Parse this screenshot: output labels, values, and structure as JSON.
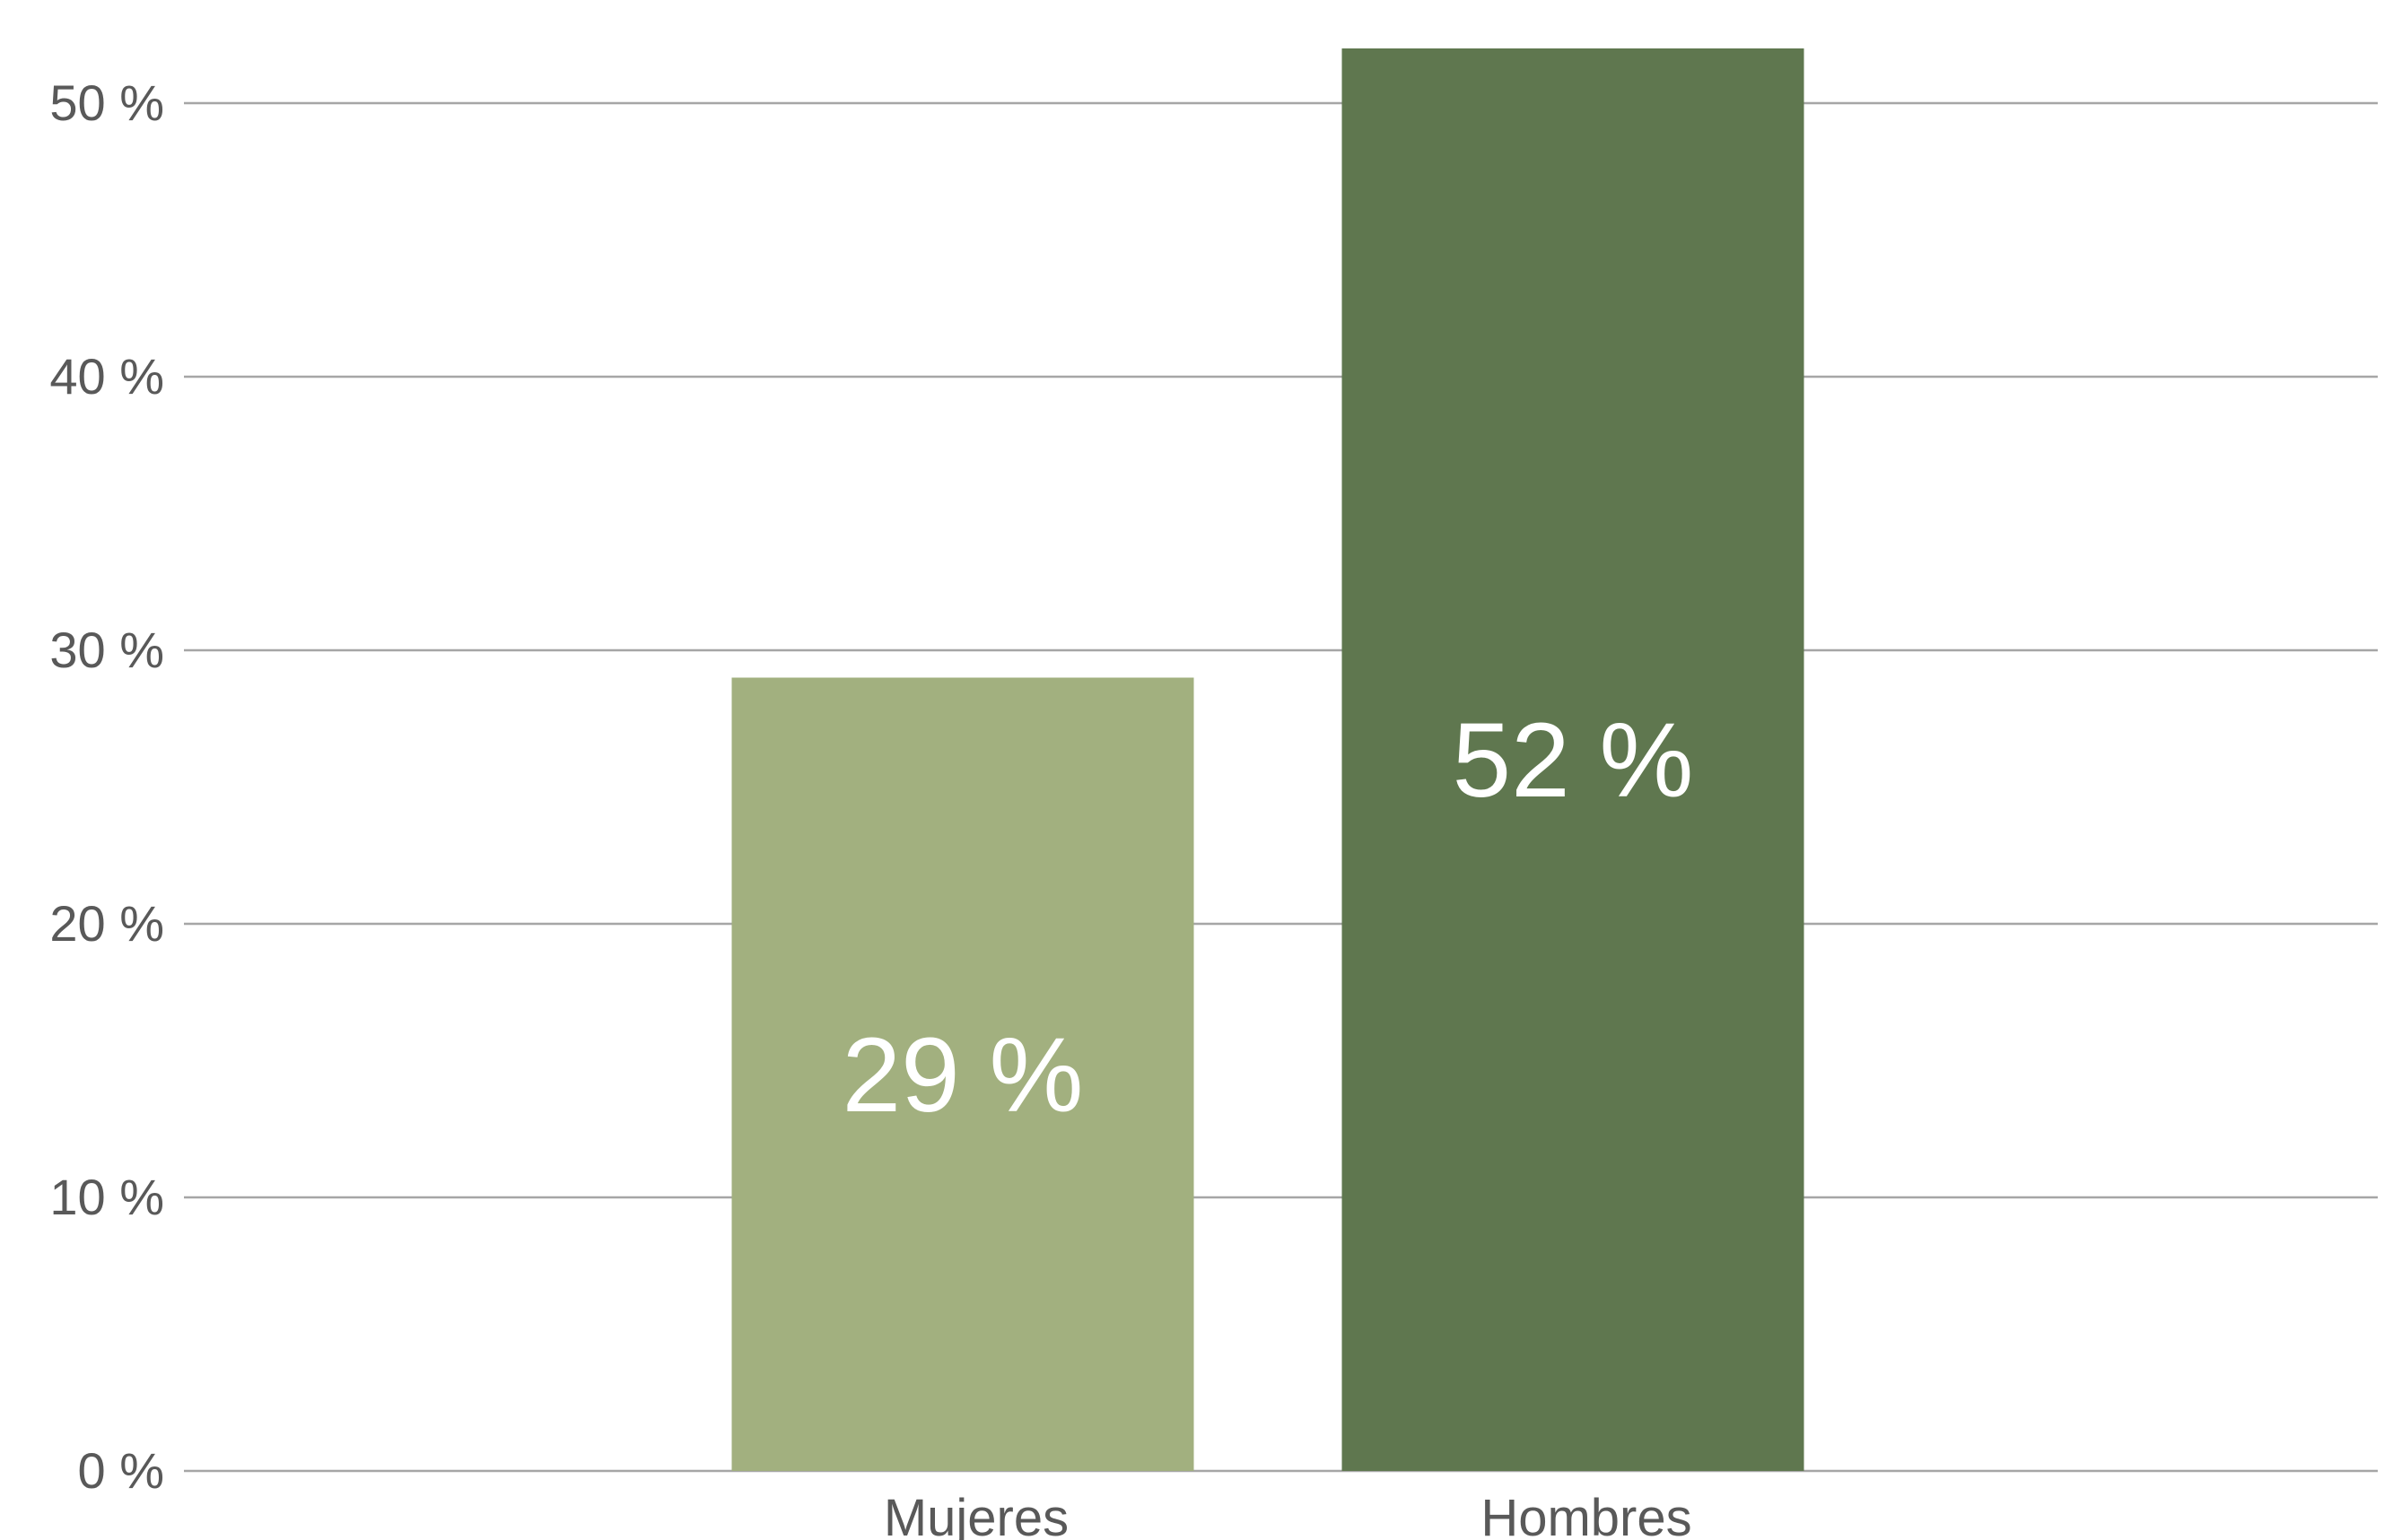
{
  "chart_data": {
    "type": "bar",
    "categories": [
      "Mujeres",
      "Hombres"
    ],
    "values": [
      29,
      52
    ],
    "value_labels": [
      "29 %",
      "52 %"
    ],
    "bar_colors": [
      "#a2b07f",
      "#5f774f"
    ],
    "title": "",
    "xlabel": "",
    "ylabel": "",
    "ylim": [
      0,
      50
    ],
    "yticks": [
      0,
      10,
      20,
      30,
      40,
      50
    ],
    "ytick_labels": [
      "0 %",
      "10 %",
      "20 %",
      "30 %",
      "40 %",
      "50 %"
    ],
    "grid": true,
    "legend": "none",
    "gridline_color": "#a6a6a6",
    "tick_label_color": "#595959",
    "data_label_color": "#ffffff"
  }
}
